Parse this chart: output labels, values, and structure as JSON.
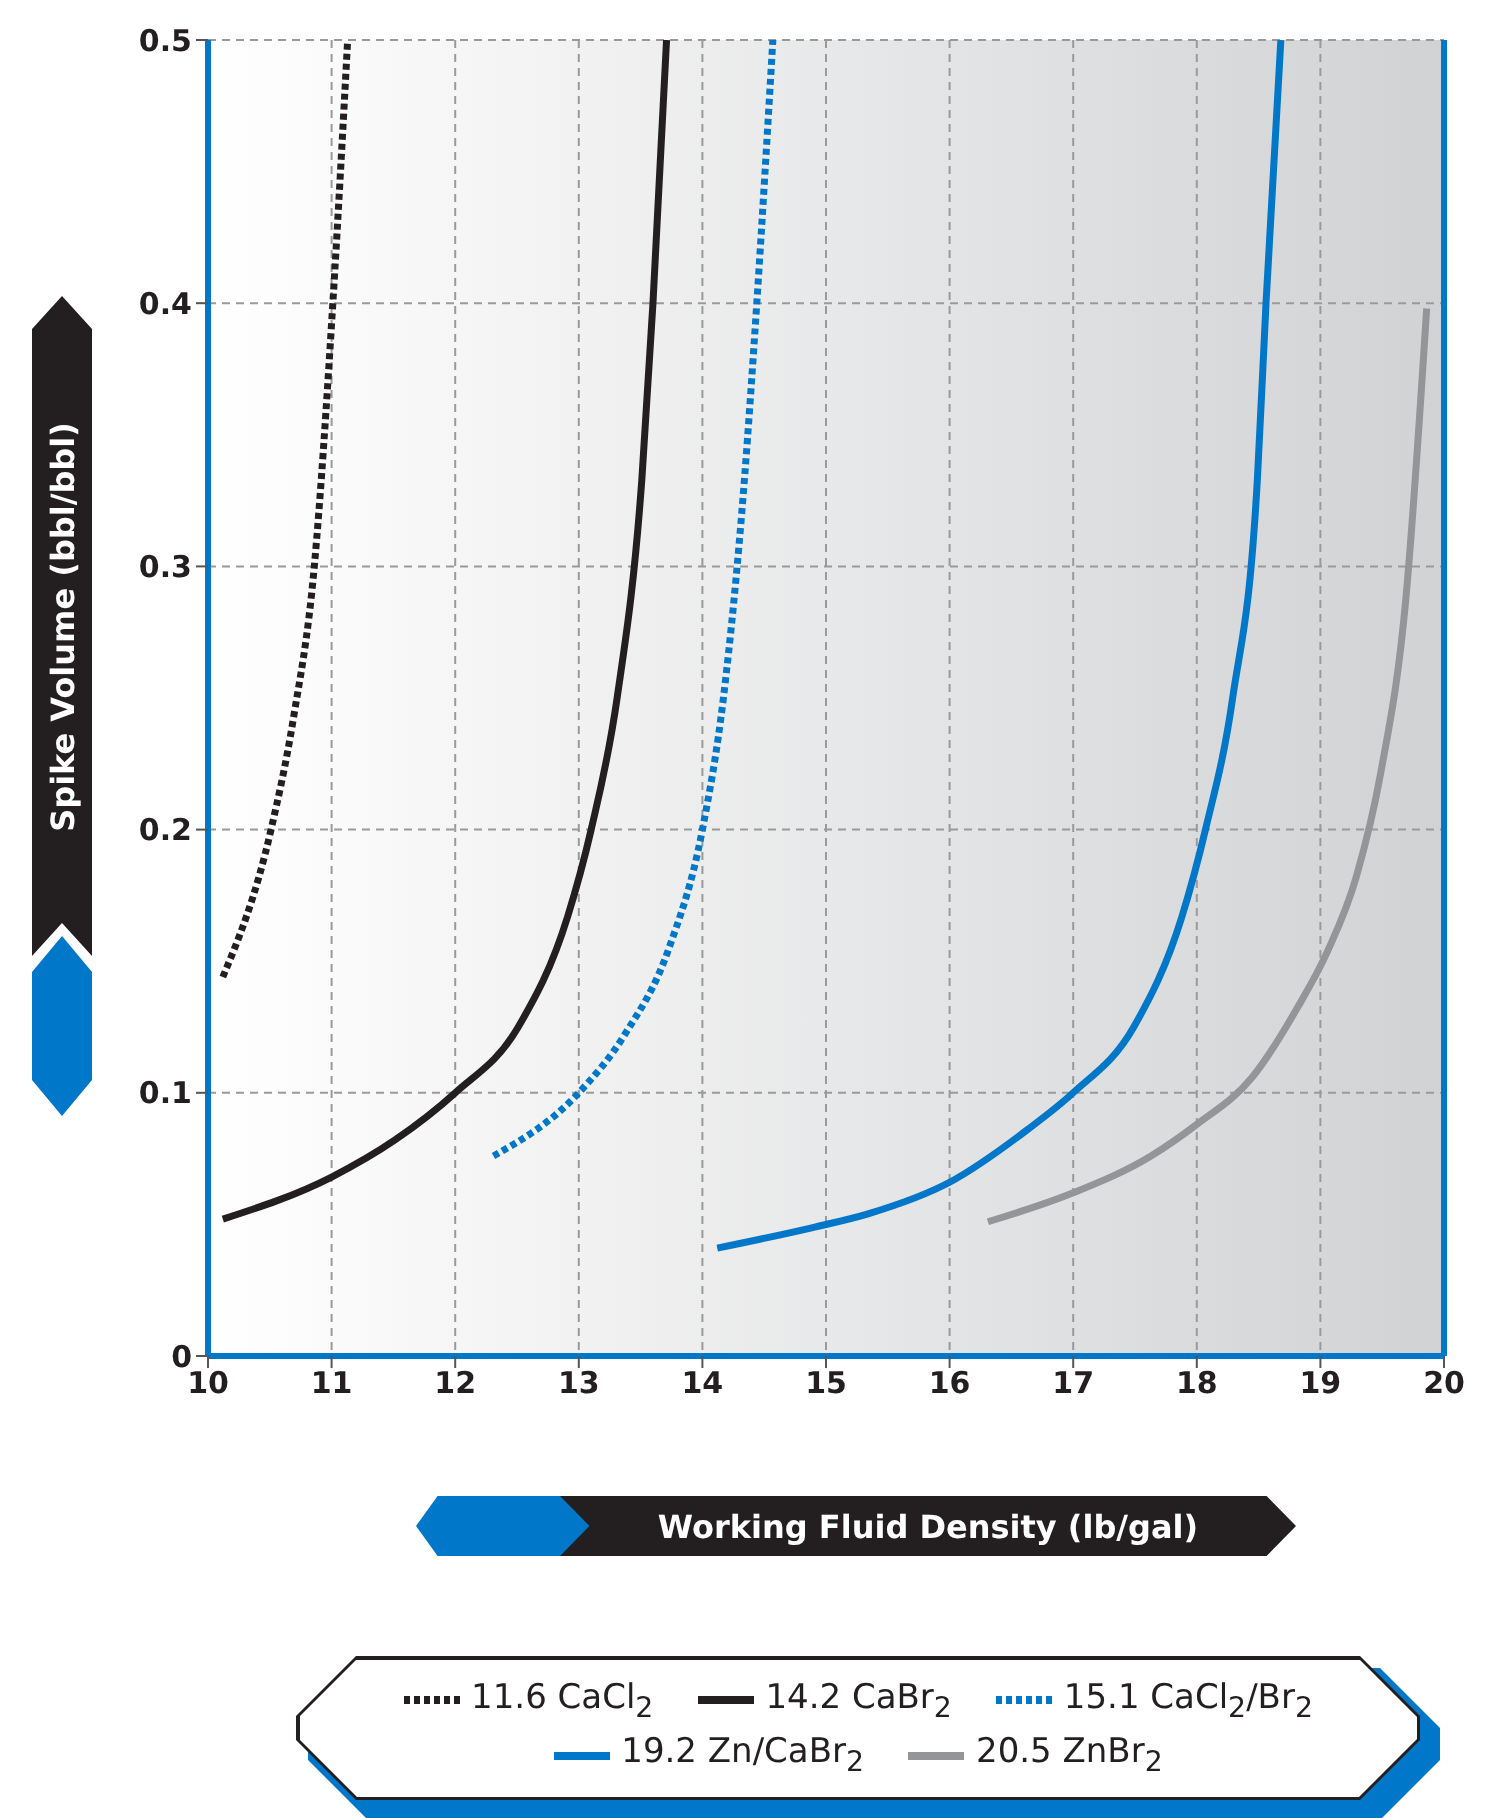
{
  "chart_data": {
    "type": "line",
    "xlabel": "Working Fluid Density (lb/gal)",
    "ylabel": "Spike Volume (bbl/bbl)",
    "xlim": [
      10,
      20
    ],
    "xticks": [
      10,
      11,
      12,
      13,
      14,
      15,
      16,
      17,
      18,
      19,
      20
    ],
    "ylim": [
      0,
      0.5
    ],
    "yticks": [
      0,
      0.1,
      0.2,
      0.3,
      0.4,
      0.5
    ],
    "grid": true,
    "legend": "bottom",
    "marker": "none",
    "series": [
      {
        "name": "11.6 CaCl$_{2}$",
        "color": "#231f20",
        "line_style": "dotted",
        "x": [
          10.12,
          10.51,
          10.69,
          10.86,
          11.01,
          11.13
        ],
        "values": [
          0.144,
          0.2,
          0.242,
          0.3,
          0.4,
          0.5
        ]
      },
      {
        "name": "14.2 CaBr$_{2}$",
        "color": "#231f20",
        "line_style": "solid",
        "x": [
          10.12,
          11,
          11.51,
          12,
          12.51,
          12.91,
          13.1,
          13.31,
          13.51,
          13.6,
          13.71
        ],
        "values": [
          0.052,
          0.068,
          0.082,
          0.1,
          0.125,
          0.167,
          0.2,
          0.25,
          0.333,
          0.4,
          0.5
        ]
      },
      {
        "name": "15.1 CaCl$_{2}$/Br$_{2}$",
        "color": "#0077c8",
        "line_style": "dotted",
        "x": [
          12.31,
          13,
          13.37,
          13.73,
          14,
          14.17,
          14.34,
          14.44,
          14.57
        ],
        "values": [
          0.076,
          0.1,
          0.122,
          0.155,
          0.2,
          0.25,
          0.333,
          0.4,
          0.5
        ]
      },
      {
        "name": "19.2 Zn/CaBr$_{2}$",
        "color": "#0077c8",
        "line_style": "solid",
        "x": [
          14.12,
          14.91,
          15.34,
          16,
          16.63,
          17,
          17.49,
          17.88,
          18.07,
          18.29,
          18.49,
          18.56,
          18.68
        ],
        "values": [
          0.041,
          0.049,
          0.054,
          0.066,
          0.086,
          0.1,
          0.125,
          0.167,
          0.2,
          0.25,
          0.333,
          0.4,
          0.5
        ]
      },
      {
        "name": "20.5 ZnBr$_{2}$",
        "color": "#939598",
        "line_style": "solid",
        "x": [
          16.31,
          17,
          17.63,
          18,
          18.45,
          18.81,
          19.06,
          19.29,
          19.49,
          19.69,
          19.86
        ],
        "values": [
          0.051,
          0.062,
          0.076,
          0.088,
          0.106,
          0.132,
          0.154,
          0.182,
          0.222,
          0.287,
          0.398
        ]
      }
    ]
  }
}
